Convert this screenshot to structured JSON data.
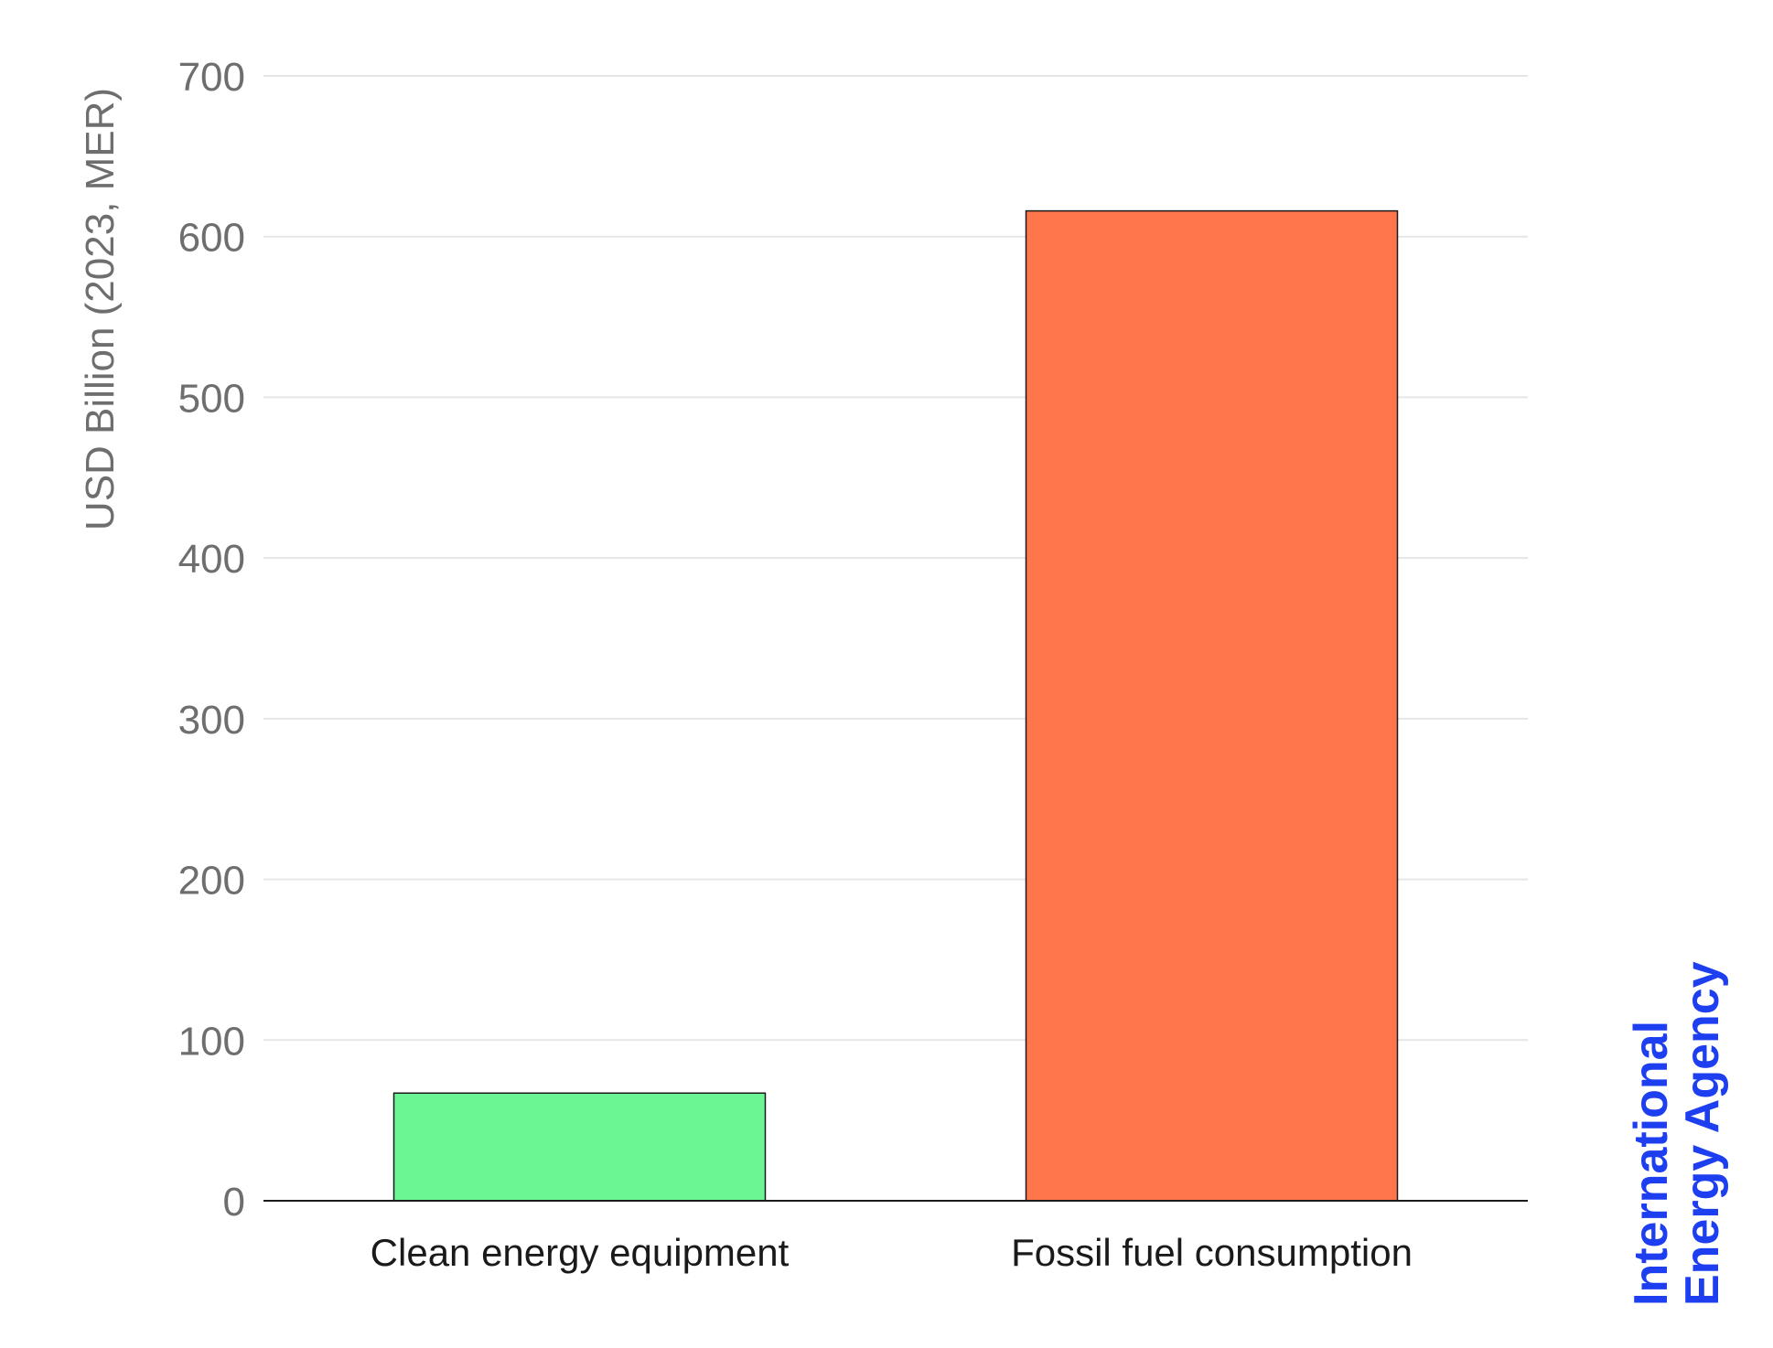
{
  "chart_data": {
    "type": "bar",
    "categories": [
      "Clean energy equipment",
      "Fossil fuel consumption"
    ],
    "values": [
      67,
      616
    ],
    "ylabel": "USD Billion (2023, MER)",
    "ylim": [
      0,
      700
    ],
    "yticks": [
      0,
      100,
      200,
      300,
      400,
      500,
      600,
      700
    ],
    "ytick_labels": [
      "0",
      "100",
      "200",
      "300",
      "400",
      "500",
      "600",
      "700"
    ],
    "grid": true,
    "colors": [
      "#6bf593",
      "#ff764d"
    ]
  },
  "logo": {
    "line1": "International",
    "line2": "Energy Agency",
    "color": "#1d3ff0"
  }
}
